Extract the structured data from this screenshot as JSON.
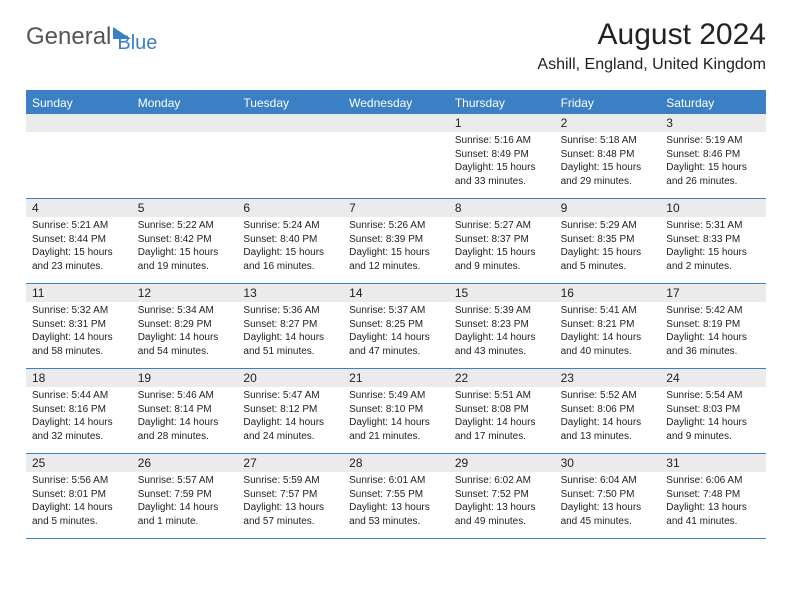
{
  "logo": {
    "part1": "General",
    "part2": "Blue"
  },
  "header": {
    "month_title": "August 2024",
    "location": "Ashill, England, United Kingdom"
  },
  "colors": {
    "accent": "#3b7fc4",
    "header_bg": "#3b7fc4",
    "daynum_bg": "#ebebeb",
    "text": "#222222",
    "white": "#ffffff"
  },
  "day_headers": [
    "Sunday",
    "Monday",
    "Tuesday",
    "Wednesday",
    "Thursday",
    "Friday",
    "Saturday"
  ],
  "weeks": [
    [
      null,
      null,
      null,
      null,
      {
        "n": "1",
        "sunrise": "5:16 AM",
        "sunset": "8:49 PM",
        "daylight": "15 hours and 33 minutes."
      },
      {
        "n": "2",
        "sunrise": "5:18 AM",
        "sunset": "8:48 PM",
        "daylight": "15 hours and 29 minutes."
      },
      {
        "n": "3",
        "sunrise": "5:19 AM",
        "sunset": "8:46 PM",
        "daylight": "15 hours and 26 minutes."
      }
    ],
    [
      {
        "n": "4",
        "sunrise": "5:21 AM",
        "sunset": "8:44 PM",
        "daylight": "15 hours and 23 minutes."
      },
      {
        "n": "5",
        "sunrise": "5:22 AM",
        "sunset": "8:42 PM",
        "daylight": "15 hours and 19 minutes."
      },
      {
        "n": "6",
        "sunrise": "5:24 AM",
        "sunset": "8:40 PM",
        "daylight": "15 hours and 16 minutes."
      },
      {
        "n": "7",
        "sunrise": "5:26 AM",
        "sunset": "8:39 PM",
        "daylight": "15 hours and 12 minutes."
      },
      {
        "n": "8",
        "sunrise": "5:27 AM",
        "sunset": "8:37 PM",
        "daylight": "15 hours and 9 minutes."
      },
      {
        "n": "9",
        "sunrise": "5:29 AM",
        "sunset": "8:35 PM",
        "daylight": "15 hours and 5 minutes."
      },
      {
        "n": "10",
        "sunrise": "5:31 AM",
        "sunset": "8:33 PM",
        "daylight": "15 hours and 2 minutes."
      }
    ],
    [
      {
        "n": "11",
        "sunrise": "5:32 AM",
        "sunset": "8:31 PM",
        "daylight": "14 hours and 58 minutes."
      },
      {
        "n": "12",
        "sunrise": "5:34 AM",
        "sunset": "8:29 PM",
        "daylight": "14 hours and 54 minutes."
      },
      {
        "n": "13",
        "sunrise": "5:36 AM",
        "sunset": "8:27 PM",
        "daylight": "14 hours and 51 minutes."
      },
      {
        "n": "14",
        "sunrise": "5:37 AM",
        "sunset": "8:25 PM",
        "daylight": "14 hours and 47 minutes."
      },
      {
        "n": "15",
        "sunrise": "5:39 AM",
        "sunset": "8:23 PM",
        "daylight": "14 hours and 43 minutes."
      },
      {
        "n": "16",
        "sunrise": "5:41 AM",
        "sunset": "8:21 PM",
        "daylight": "14 hours and 40 minutes."
      },
      {
        "n": "17",
        "sunrise": "5:42 AM",
        "sunset": "8:19 PM",
        "daylight": "14 hours and 36 minutes."
      }
    ],
    [
      {
        "n": "18",
        "sunrise": "5:44 AM",
        "sunset": "8:16 PM",
        "daylight": "14 hours and 32 minutes."
      },
      {
        "n": "19",
        "sunrise": "5:46 AM",
        "sunset": "8:14 PM",
        "daylight": "14 hours and 28 minutes."
      },
      {
        "n": "20",
        "sunrise": "5:47 AM",
        "sunset": "8:12 PM",
        "daylight": "14 hours and 24 minutes."
      },
      {
        "n": "21",
        "sunrise": "5:49 AM",
        "sunset": "8:10 PM",
        "daylight": "14 hours and 21 minutes."
      },
      {
        "n": "22",
        "sunrise": "5:51 AM",
        "sunset": "8:08 PM",
        "daylight": "14 hours and 17 minutes."
      },
      {
        "n": "23",
        "sunrise": "5:52 AM",
        "sunset": "8:06 PM",
        "daylight": "14 hours and 13 minutes."
      },
      {
        "n": "24",
        "sunrise": "5:54 AM",
        "sunset": "8:03 PM",
        "daylight": "14 hours and 9 minutes."
      }
    ],
    [
      {
        "n": "25",
        "sunrise": "5:56 AM",
        "sunset": "8:01 PM",
        "daylight": "14 hours and 5 minutes."
      },
      {
        "n": "26",
        "sunrise": "5:57 AM",
        "sunset": "7:59 PM",
        "daylight": "14 hours and 1 minute."
      },
      {
        "n": "27",
        "sunrise": "5:59 AM",
        "sunset": "7:57 PM",
        "daylight": "13 hours and 57 minutes."
      },
      {
        "n": "28",
        "sunrise": "6:01 AM",
        "sunset": "7:55 PM",
        "daylight": "13 hours and 53 minutes."
      },
      {
        "n": "29",
        "sunrise": "6:02 AM",
        "sunset": "7:52 PM",
        "daylight": "13 hours and 49 minutes."
      },
      {
        "n": "30",
        "sunrise": "6:04 AM",
        "sunset": "7:50 PM",
        "daylight": "13 hours and 45 minutes."
      },
      {
        "n": "31",
        "sunrise": "6:06 AM",
        "sunset": "7:48 PM",
        "daylight": "13 hours and 41 minutes."
      }
    ]
  ],
  "labels": {
    "sunrise": "Sunrise: ",
    "sunset": "Sunset: ",
    "daylight": "Daylight: "
  }
}
